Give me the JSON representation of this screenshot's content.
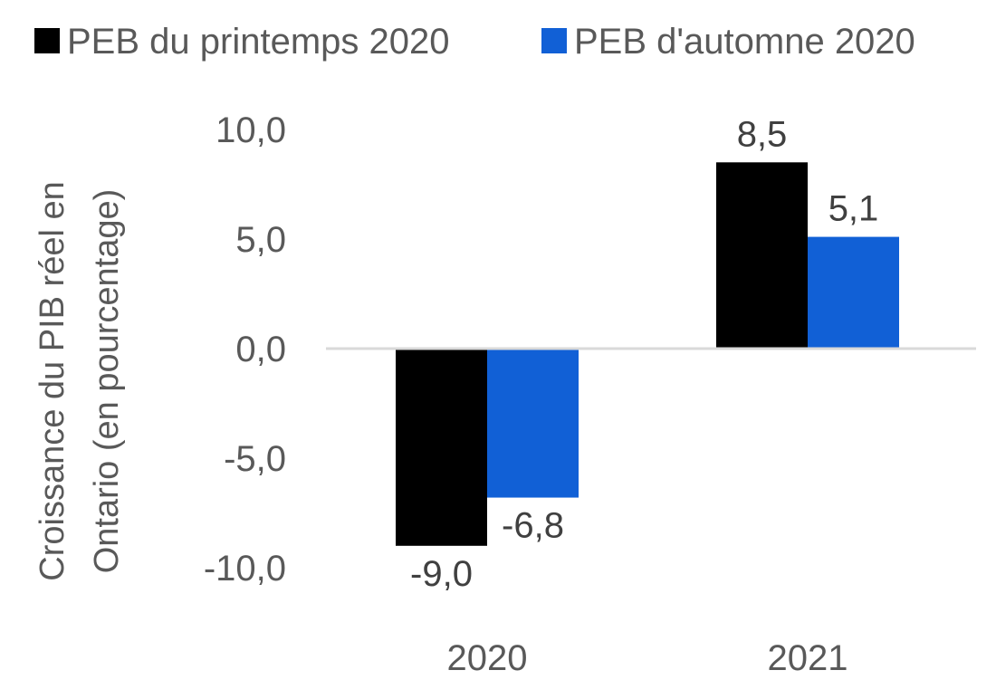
{
  "chart_data": {
    "type": "bar",
    "categories": [
      "2020",
      "2021"
    ],
    "series": [
      {
        "name": "PEB du printemps 2020",
        "values": [
          -9.0,
          8.5
        ],
        "color": "#000000",
        "labels": [
          "-9,0",
          "8,5"
        ]
      },
      {
        "name": "PEB d'automne 2020",
        "values": [
          -6.8,
          5.1
        ],
        "color": "#1160d6",
        "labels": [
          "-6,8",
          "5,1"
        ]
      }
    ],
    "ylabel_lines": [
      "Croissance du PIB réel en",
      "Ontario (en pourcentage)"
    ],
    "ylim": [
      -10,
      10
    ],
    "yticks": [
      10,
      5,
      0,
      -5,
      -10
    ],
    "ytick_labels": [
      "10,0",
      "5,0",
      "0,0",
      "-5,0",
      "-10,0"
    ],
    "legend_position": "top",
    "grid": false,
    "zero_line_color": "#d9d9d9"
  }
}
